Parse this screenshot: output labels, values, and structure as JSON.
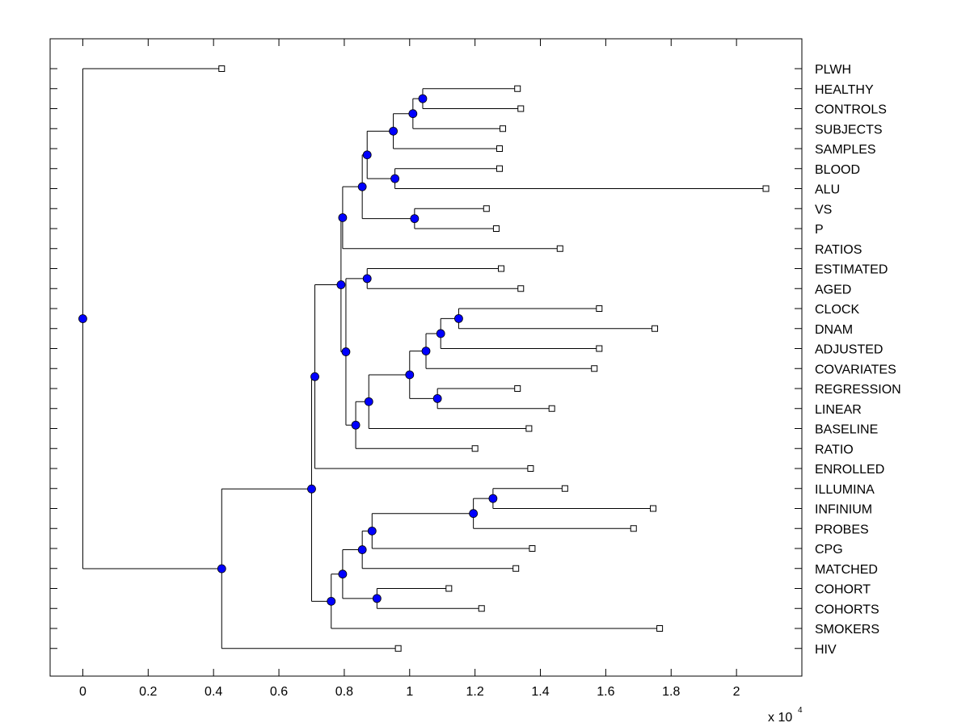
{
  "chart_data": {
    "type": "dendrogram",
    "orientation": "horizontal",
    "xlim": [
      -1000,
      22000
    ],
    "x_ticks": [
      0,
      2000,
      4000,
      6000,
      8000,
      10000,
      12000,
      14000,
      16000,
      18000,
      20000
    ],
    "x_tick_labels": [
      "0",
      "0.2",
      "0.4",
      "0.6",
      "0.8",
      "1",
      "1.2",
      "1.4",
      "1.6",
      "1.8",
      "2"
    ],
    "x_exponent_label": "x 10",
    "x_exponent_power": "4",
    "colors": {
      "node": "#0000ff",
      "line": "#000000",
      "leaf": "#ffffff"
    },
    "root": {
      "x": 0,
      "children": [
        {
          "leaf": "PLWH",
          "x": 4250
        },
        {
          "x": 4250,
          "children": [
            {
              "x": 7000,
              "children": [
                {
                  "x": 7100,
                  "children": [
                    {
                      "x": 7900,
                      "children": [
                        {
                          "x": 7950,
                          "children": [
                            {
                              "x": 8550,
                              "children": [
                                {
                                  "x": 8700,
                                  "children": [
                                    {
                                      "x": 9500,
                                      "children": [
                                        {
                                          "x": 10100,
                                          "children": [
                                            {
                                              "x": 10400,
                                              "children": [
                                                {
                                                  "leaf": "HEALTHY",
                                                  "x": 13300
                                                },
                                                {
                                                  "leaf": "CONTROLS",
                                                  "x": 13400
                                                }
                                              ]
                                            },
                                            {
                                              "leaf": "SUBJECTS",
                                              "x": 12850
                                            }
                                          ]
                                        },
                                        {
                                          "leaf": "SAMPLES",
                                          "x": 12750
                                        }
                                      ]
                                    },
                                    {
                                      "x": 9550,
                                      "children": [
                                        {
                                          "leaf": "BLOOD",
                                          "x": 12750
                                        },
                                        {
                                          "leaf": "ALU",
                                          "x": 20900
                                        }
                                      ]
                                    }
                                  ]
                                },
                                {
                                  "x": 10150,
                                  "children": [
                                    {
                                      "leaf": "VS",
                                      "x": 12350
                                    },
                                    {
                                      "leaf": "P",
                                      "x": 12650
                                    }
                                  ]
                                }
                              ]
                            },
                            {
                              "leaf": "RATIOS",
                              "x": 14600
                            }
                          ]
                        },
                        {
                          "x": 8050,
                          "children": [
                            {
                              "x": 8700,
                              "children": [
                                {
                                  "leaf": "ESTIMATED",
                                  "x": 12800
                                },
                                {
                                  "leaf": "AGED",
                                  "x": 13400
                                }
                              ]
                            },
                            {
                              "x": 8350,
                              "children": [
                                {
                                  "x": 8750,
                                  "children": [
                                    {
                                      "x": 10000,
                                      "children": [
                                        {
                                          "x": 10500,
                                          "children": [
                                            {
                                              "x": 10950,
                                              "children": [
                                                {
                                                  "x": 11500,
                                                  "children": [
                                                    {
                                                      "leaf": "CLOCK",
                                                      "x": 15800
                                                    },
                                                    {
                                                      "leaf": "DNAM",
                                                      "x": 17500
                                                    }
                                                  ]
                                                },
                                                {
                                                  "leaf": "ADJUSTED",
                                                  "x": 15800
                                                }
                                              ]
                                            },
                                            {
                                              "leaf": "COVARIATES",
                                              "x": 15650
                                            }
                                          ]
                                        },
                                        {
                                          "x": 10850,
                                          "children": [
                                            {
                                              "leaf": "REGRESSION",
                                              "x": 13300
                                            },
                                            {
                                              "leaf": "LINEAR",
                                              "x": 14350
                                            }
                                          ]
                                        }
                                      ]
                                    },
                                    {
                                      "leaf": "BASELINE",
                                      "x": 13650
                                    }
                                  ]
                                },
                                {
                                  "leaf": "RATIO",
                                  "x": 12000
                                }
                              ]
                            }
                          ]
                        }
                      ]
                    },
                    {
                      "leaf": "ENROLLED",
                      "x": 13700
                    }
                  ]
                },
                {
                  "x": 7600,
                  "children": [
                    {
                      "x": 7950,
                      "children": [
                        {
                          "x": 8550,
                          "children": [
                            {
                              "x": 8850,
                              "children": [
                                {
                                  "x": 11950,
                                  "children": [
                                    {
                                      "x": 12550,
                                      "children": [
                                        {
                                          "leaf": "ILLUMINA",
                                          "x": 14750
                                        },
                                        {
                                          "leaf": "INFINIUM",
                                          "x": 17450
                                        }
                                      ]
                                    },
                                    {
                                      "leaf": "PROBES",
                                      "x": 16850
                                    }
                                  ]
                                },
                                {
                                  "leaf": "CPG",
                                  "x": 13750
                                }
                              ]
                            },
                            {
                              "leaf": "MATCHED",
                              "x": 13250
                            }
                          ]
                        },
                        {
                          "x": 9000,
                          "children": [
                            {
                              "leaf": "COHORT",
                              "x": 11200
                            },
                            {
                              "leaf": "COHORTS",
                              "x": 12200
                            }
                          ]
                        }
                      ]
                    },
                    {
                      "leaf": "SMOKERS",
                      "x": 17650
                    }
                  ]
                }
              ]
            },
            {
              "leaf": "HIV",
              "x": 9650
            }
          ]
        }
      ]
    }
  }
}
